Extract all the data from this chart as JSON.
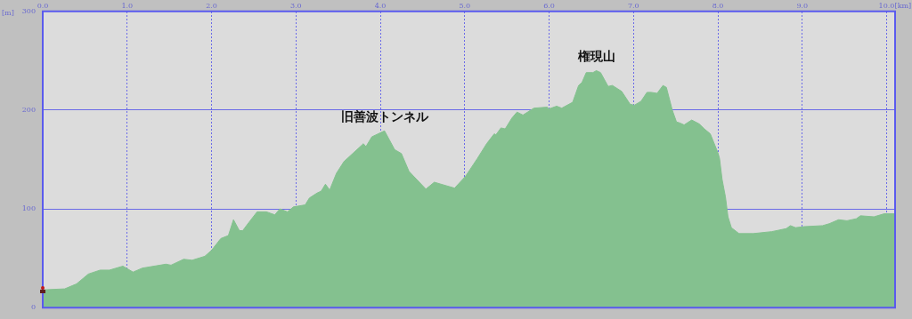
{
  "chart_data": {
    "type": "area",
    "xlabel": "[km]",
    "ylabel": "[m]",
    "xlim": [
      0,
      10.1
    ],
    "ylim": [
      0,
      300
    ],
    "xticks": [
      {
        "value": 0,
        "label": "0.0"
      },
      {
        "value": 1,
        "label": "1.0"
      },
      {
        "value": 2,
        "label": "2.0"
      },
      {
        "value": 3,
        "label": "3.0"
      },
      {
        "value": 4,
        "label": "4.0"
      },
      {
        "value": 5,
        "label": "5.0"
      },
      {
        "value": 6,
        "label": "6.0"
      },
      {
        "value": 7,
        "label": "7.0"
      },
      {
        "value": 8,
        "label": "8.0"
      },
      {
        "value": 9,
        "label": "9.0"
      },
      {
        "value": 10,
        "label": "10.0"
      }
    ],
    "yticks": [
      0,
      100,
      200,
      300
    ],
    "grid": true,
    "legend": false,
    "annotations": [
      {
        "text": "旧善波トンネル",
        "x": 4.05,
        "y": 179
      },
      {
        "text": "権現山",
        "x": 6.56,
        "y": 240
      }
    ],
    "series": [
      {
        "color": "#84c18f",
        "x": [
          0,
          0.26,
          0.4,
          0.54,
          0.68,
          0.79,
          0.95,
          1.07,
          1.18,
          1.46,
          1.52,
          1.67,
          1.77,
          1.92,
          2.0,
          2.11,
          2.2,
          2.26,
          2.33,
          2.37,
          2.44,
          2.54,
          2.65,
          2.75,
          2.81,
          2.9,
          2.97,
          3.11,
          3.16,
          3.25,
          3.3,
          3.35,
          3.4,
          3.48,
          3.57,
          3.8,
          3.83,
          3.9,
          4.05,
          4.17,
          4.25,
          4.34,
          4.54,
          4.64,
          4.76,
          4.88,
          5.01,
          5.15,
          5.26,
          5.35,
          5.37,
          5.43,
          5.48,
          5.56,
          5.62,
          5.69,
          5.82,
          5.98,
          5.99,
          6.09,
          6.15,
          6.28,
          6.35,
          6.39,
          6.44,
          6.52,
          6.56,
          6.61,
          6.7,
          6.75,
          6.86,
          6.96,
          7.01,
          7.09,
          7.16,
          7.21,
          7.28,
          7.35,
          7.39,
          7.46,
          7.51,
          7.55,
          7.6,
          7.69,
          7.78,
          7.84,
          7.91,
          8.0,
          8.02,
          8.05,
          8.09,
          8.12,
          8.16,
          8.25,
          8.42,
          8.64,
          8.81,
          8.86,
          8.92,
          9.02,
          9.24,
          9.32,
          9.43,
          9.53,
          9.64,
          9.69,
          9.85,
          9.97,
          10.1
        ],
        "values": [
          18,
          19,
          24,
          34,
          38,
          38,
          42,
          36,
          40,
          44,
          43,
          49,
          48,
          52,
          58,
          70,
          73,
          89,
          78,
          78,
          86,
          97,
          97,
          94,
          100,
          97,
          102,
          104,
          111,
          116,
          118,
          125,
          119,
          136,
          148,
          166,
          163,
          173,
          179,
          160,
          156,
          138,
          120,
          127,
          124,
          121,
          133,
          151,
          166,
          176,
          175,
          182,
          181,
          192,
          198,
          195,
          202,
          203,
          201,
          204,
          202,
          208,
          225,
          228,
          238,
          238,
          240,
          238,
          224,
          225,
          219,
          206,
          205,
          209,
          218,
          218,
          217,
          225,
          223,
          200,
          188,
          187,
          185,
          190,
          186,
          181,
          176,
          157,
          151,
          130,
          112,
          92,
          81,
          75,
          75,
          77,
          80,
          83,
          81,
          82,
          83,
          85,
          89,
          88,
          90,
          93,
          92,
          95,
          95
        ]
      }
    ]
  }
}
